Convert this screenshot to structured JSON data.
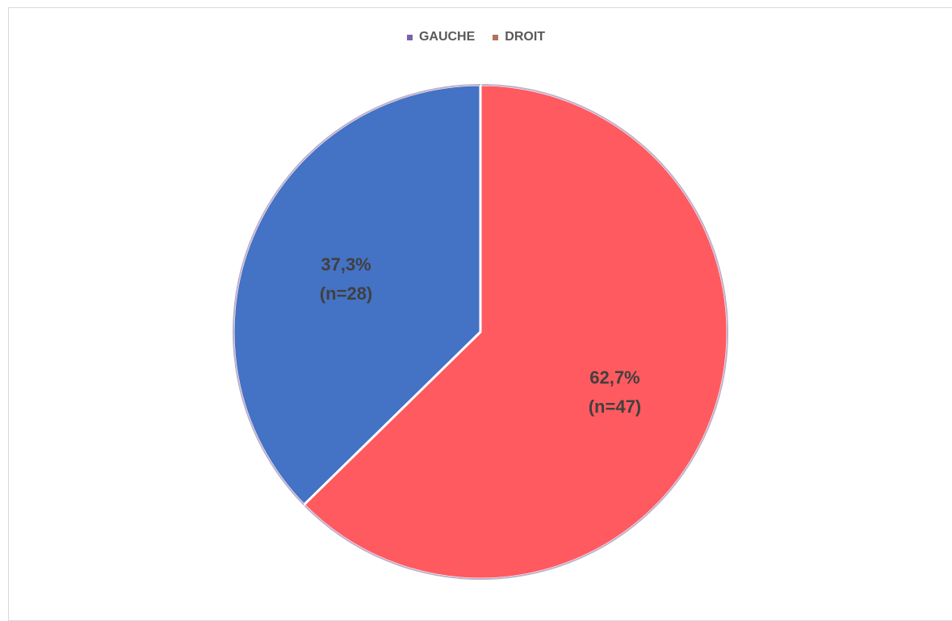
{
  "chart_data": {
    "type": "pie",
    "categories": [
      "GAUCHE",
      "DROIT"
    ],
    "values": [
      28,
      47
    ],
    "percent_labels": [
      "37,3%",
      "62,7%"
    ],
    "count_labels": [
      "(n=28)",
      "(n=47)"
    ],
    "colors": [
      "#4472C4",
      "#FF5A5F"
    ],
    "legend_colors": [
      "#7B61A8",
      "#B0735C"
    ],
    "legend": "top-center",
    "title": "",
    "start_angle_deg": 0
  }
}
